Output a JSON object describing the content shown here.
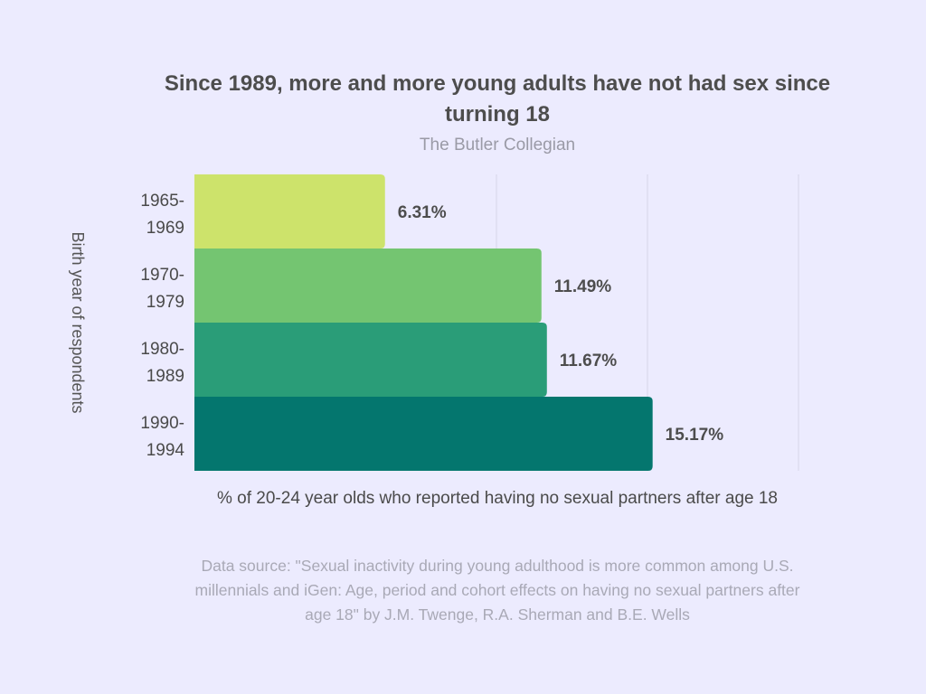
{
  "chart_data": {
    "type": "bar",
    "orientation": "horizontal",
    "title": "Since 1989, more and more young adults have not had sex since turning 18",
    "subtitle": "The Butler Collegian",
    "categories": [
      [
        "1965-",
        "1969"
      ],
      [
        "1970-",
        "1979"
      ],
      [
        "1980-",
        "1989"
      ],
      [
        "1990-",
        "1994"
      ]
    ],
    "values": [
      6.31,
      11.49,
      11.67,
      15.17
    ],
    "data_labels": [
      "6.31%",
      "11.49%",
      "11.67%",
      "15.17%"
    ],
    "colors": [
      "#cde36b",
      "#74c571",
      "#2a9d78",
      "#04766e"
    ],
    "xlabel": "% of 20-24 year olds who reported having no sexual partners after age 18",
    "ylabel": "Birth year of respondents",
    "xlim": [
      0,
      20
    ],
    "gridlines": [
      5,
      10,
      15,
      20
    ],
    "source": "Data source: \"Sexual inactivity during young adulthood is more common among U.S. millennials and iGen: Age, period and cohort effects on having no sexual partners after age 18\" by J.M. Twenge, R.A. Sherman and B.E. Wells"
  }
}
